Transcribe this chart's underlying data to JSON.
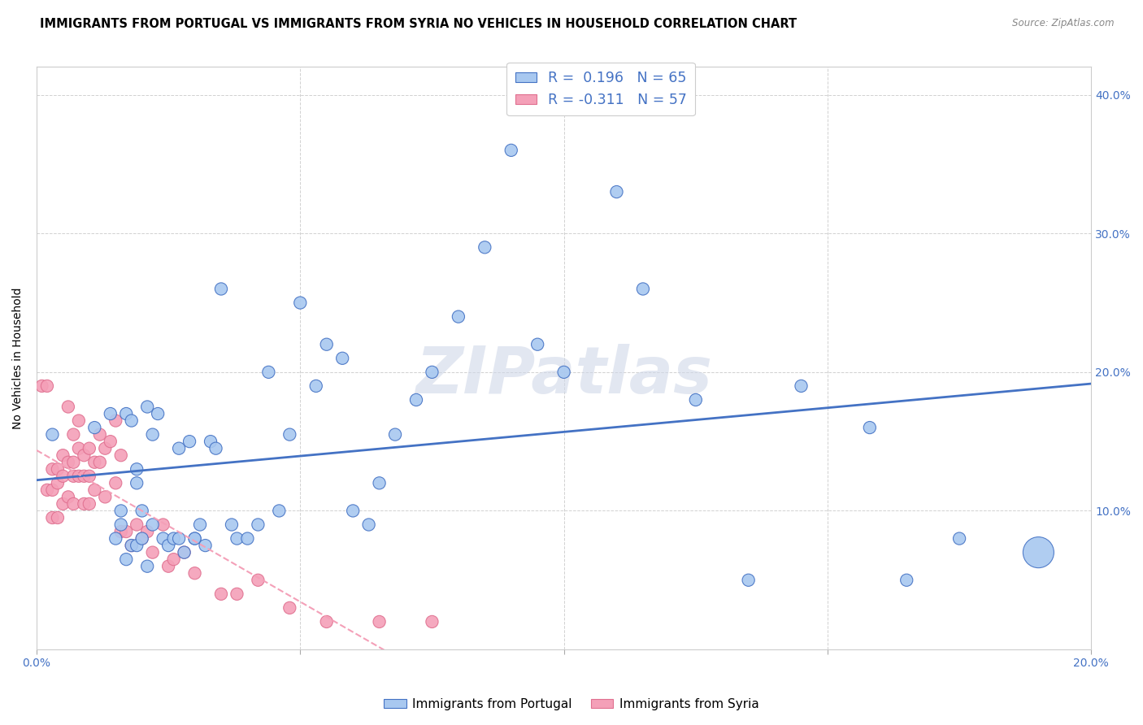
{
  "title": "IMMIGRANTS FROM PORTUGAL VS IMMIGRANTS FROM SYRIA NO VEHICLES IN HOUSEHOLD CORRELATION CHART",
  "source": "Source: ZipAtlas.com",
  "ylabel_label": "No Vehicles in Household",
  "xlim": [
    0.0,
    0.2
  ],
  "ylim": [
    0.0,
    0.42
  ],
  "xticks": [
    0.0,
    0.05,
    0.1,
    0.15,
    0.2
  ],
  "xtick_labels": [
    "0.0%",
    "",
    "",
    "",
    "20.0%"
  ],
  "yticks": [
    0.0,
    0.1,
    0.2,
    0.3,
    0.4
  ],
  "ytick_labels_right": [
    "",
    "10.0%",
    "20.0%",
    "30.0%",
    "40.0%"
  ],
  "legend_portugal": "Immigrants from Portugal",
  "legend_syria": "Immigrants from Syria",
  "R_portugal": 0.196,
  "N_portugal": 65,
  "R_syria": -0.311,
  "N_syria": 57,
  "color_portugal": "#a8c8f0",
  "color_syria": "#f4a0b8",
  "line_portugal_color": "#4472c4",
  "line_syria_color": "#f4a0b8",
  "background_color": "#ffffff",
  "grid_color": "#cccccc",
  "portugal_x": [
    0.003,
    0.011,
    0.014,
    0.015,
    0.016,
    0.016,
    0.017,
    0.017,
    0.018,
    0.018,
    0.019,
    0.019,
    0.019,
    0.02,
    0.02,
    0.021,
    0.021,
    0.022,
    0.022,
    0.023,
    0.024,
    0.025,
    0.026,
    0.027,
    0.027,
    0.028,
    0.029,
    0.03,
    0.03,
    0.031,
    0.032,
    0.033,
    0.034,
    0.035,
    0.037,
    0.038,
    0.04,
    0.042,
    0.044,
    0.046,
    0.048,
    0.05,
    0.053,
    0.055,
    0.058,
    0.06,
    0.063,
    0.065,
    0.068,
    0.072,
    0.075,
    0.08,
    0.085,
    0.09,
    0.095,
    0.1,
    0.11,
    0.115,
    0.125,
    0.135,
    0.145,
    0.158,
    0.165,
    0.175,
    0.19
  ],
  "portugal_y": [
    0.155,
    0.16,
    0.17,
    0.08,
    0.1,
    0.09,
    0.17,
    0.065,
    0.165,
    0.075,
    0.13,
    0.12,
    0.075,
    0.1,
    0.08,
    0.06,
    0.175,
    0.09,
    0.155,
    0.17,
    0.08,
    0.075,
    0.08,
    0.145,
    0.08,
    0.07,
    0.15,
    0.08,
    0.08,
    0.09,
    0.075,
    0.15,
    0.145,
    0.26,
    0.09,
    0.08,
    0.08,
    0.09,
    0.2,
    0.1,
    0.155,
    0.25,
    0.19,
    0.22,
    0.21,
    0.1,
    0.09,
    0.12,
    0.155,
    0.18,
    0.2,
    0.24,
    0.29,
    0.36,
    0.22,
    0.2,
    0.33,
    0.26,
    0.18,
    0.05,
    0.19,
    0.16,
    0.05,
    0.08,
    0.07
  ],
  "portugal_sizes": [
    40,
    40,
    40,
    40,
    40,
    40,
    40,
    40,
    40,
    40,
    40,
    40,
    40,
    40,
    40,
    40,
    40,
    40,
    40,
    40,
    40,
    40,
    40,
    40,
    40,
    40,
    40,
    40,
    40,
    40,
    40,
    40,
    40,
    40,
    40,
    40,
    40,
    40,
    40,
    40,
    40,
    40,
    40,
    40,
    40,
    40,
    40,
    40,
    40,
    40,
    40,
    40,
    40,
    40,
    40,
    40,
    40,
    40,
    40,
    40,
    40,
    40,
    40,
    40,
    250
  ],
  "syria_x": [
    0.001,
    0.002,
    0.002,
    0.003,
    0.003,
    0.003,
    0.004,
    0.004,
    0.004,
    0.005,
    0.005,
    0.005,
    0.006,
    0.006,
    0.006,
    0.007,
    0.007,
    0.007,
    0.007,
    0.008,
    0.008,
    0.008,
    0.009,
    0.009,
    0.009,
    0.01,
    0.01,
    0.01,
    0.011,
    0.011,
    0.012,
    0.012,
    0.013,
    0.013,
    0.014,
    0.015,
    0.015,
    0.016,
    0.016,
    0.017,
    0.018,
    0.019,
    0.02,
    0.021,
    0.022,
    0.024,
    0.025,
    0.026,
    0.028,
    0.03,
    0.035,
    0.038,
    0.042,
    0.048,
    0.055,
    0.065,
    0.075
  ],
  "syria_y": [
    0.19,
    0.19,
    0.115,
    0.13,
    0.115,
    0.095,
    0.13,
    0.12,
    0.095,
    0.14,
    0.125,
    0.105,
    0.175,
    0.135,
    0.11,
    0.155,
    0.135,
    0.125,
    0.105,
    0.165,
    0.145,
    0.125,
    0.14,
    0.125,
    0.105,
    0.145,
    0.125,
    0.105,
    0.135,
    0.115,
    0.155,
    0.135,
    0.145,
    0.11,
    0.15,
    0.165,
    0.12,
    0.14,
    0.085,
    0.085,
    0.075,
    0.09,
    0.08,
    0.085,
    0.07,
    0.09,
    0.06,
    0.065,
    0.07,
    0.055,
    0.04,
    0.04,
    0.05,
    0.03,
    0.02,
    0.02,
    0.02
  ],
  "syria_sizes": [
    40,
    40,
    40,
    40,
    40,
    40,
    40,
    40,
    40,
    40,
    40,
    40,
    40,
    40,
    40,
    40,
    40,
    40,
    40,
    40,
    40,
    40,
    40,
    40,
    40,
    40,
    40,
    40,
    40,
    40,
    40,
    40,
    40,
    40,
    40,
    40,
    40,
    40,
    40,
    40,
    40,
    40,
    40,
    40,
    40,
    40,
    40,
    40,
    40,
    40,
    40,
    40,
    40,
    40,
    40,
    40,
    40
  ],
  "watermark": "ZIPatlas",
  "title_fontsize": 10.5,
  "tick_fontsize": 10
}
